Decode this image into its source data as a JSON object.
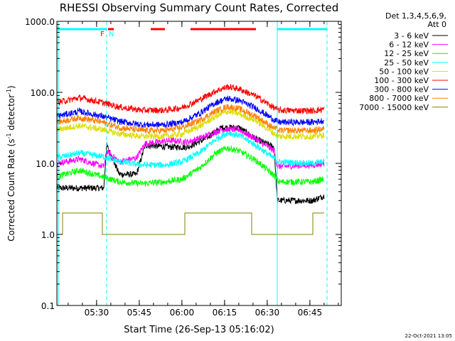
{
  "chart_data": {
    "type": "line",
    "title": "RHESSI Observing Summary Count Rates, Corrected",
    "xlabel": "Start Time (26-Sep-13 05:16:02)",
    "ylabel_main": "Corrected Count Rate (s",
    "ylabel_sup": "-1",
    "ylabel_tail": " detector",
    "ylabel_end": ")",
    "x_unit": "minutes since 05:16:02",
    "xlim": [
      0,
      100
    ],
    "ylim": [
      0.1,
      1000
    ],
    "yscale": "log",
    "xticks": [
      {
        "t": 13.97,
        "label": "05:30"
      },
      {
        "t": 28.97,
        "label": "05:45"
      },
      {
        "t": 43.97,
        "label": "06:00"
      },
      {
        "t": 58.97,
        "label": "06:15"
      },
      {
        "t": 73.97,
        "label": "06:30"
      },
      {
        "t": 88.97,
        "label": "06:45"
      }
    ],
    "yticks": [
      {
        "v": 0.1,
        "label": "0.1"
      },
      {
        "v": 1,
        "label": "1.0"
      },
      {
        "v": 10,
        "label": "10.0"
      },
      {
        "v": 100,
        "label": "100.0"
      },
      {
        "v": 1000,
        "label": "1000.0"
      }
    ],
    "legend_header": [
      "Det 1,3,4,5,6,9,",
      "Att 0"
    ],
    "legend_placement": "right",
    "series": [
      {
        "name": "3 - 6 keV",
        "color": "#000000",
        "points": [
          [
            0,
            4.5
          ],
          [
            16.5,
            4.5
          ],
          [
            17.5,
            18
          ],
          [
            22,
            7
          ],
          [
            28,
            7
          ],
          [
            31,
            18
          ],
          [
            40,
            17
          ],
          [
            46,
            17
          ],
          [
            52,
            22
          ],
          [
            58,
            32
          ],
          [
            64,
            32
          ],
          [
            70,
            22
          ],
          [
            76.4,
            17
          ],
          [
            77.5,
            3
          ],
          [
            90,
            3
          ],
          [
            94,
            3.5
          ]
        ]
      },
      {
        "name": "6 - 12 keV",
        "color": "#ff00ff",
        "points": [
          [
            0,
            10
          ],
          [
            8,
            11.5
          ],
          [
            16.5,
            9
          ],
          [
            17.5,
            15
          ],
          [
            22,
            10.5
          ],
          [
            28,
            12
          ],
          [
            31,
            19
          ],
          [
            40,
            21
          ],
          [
            46,
            20
          ],
          [
            52,
            24
          ],
          [
            58,
            30
          ],
          [
            64,
            30
          ],
          [
            70,
            22
          ],
          [
            76.4,
            15
          ],
          [
            77.5,
            9
          ],
          [
            90,
            9.5
          ],
          [
            94,
            10
          ]
        ]
      },
      {
        "name": "12 - 25 keV",
        "color": "#00ff00",
        "points": [
          [
            0,
            6.5
          ],
          [
            8,
            8
          ],
          [
            16,
            6.5
          ],
          [
            22,
            5.5
          ],
          [
            30,
            5.2
          ],
          [
            38,
            5.5
          ],
          [
            44,
            6
          ],
          [
            50,
            8.5
          ],
          [
            56,
            14
          ],
          [
            60,
            16.5
          ],
          [
            64,
            15
          ],
          [
            70,
            11
          ],
          [
            76,
            7
          ],
          [
            78,
            5.5
          ],
          [
            90,
            5.5
          ],
          [
            94,
            6
          ]
        ]
      },
      {
        "name": "25 - 50 keV",
        "color": "#00ffff",
        "points": [
          [
            0,
            12
          ],
          [
            8,
            14
          ],
          [
            16,
            12.5
          ],
          [
            22,
            10.5
          ],
          [
            30,
            9.5
          ],
          [
            38,
            9.5
          ],
          [
            44,
            10.5
          ],
          [
            50,
            14
          ],
          [
            56,
            22
          ],
          [
            60,
            27
          ],
          [
            64,
            25
          ],
          [
            70,
            18
          ],
          [
            76,
            12
          ],
          [
            78,
            10.5
          ],
          [
            90,
            10
          ],
          [
            94,
            10.5
          ]
        ]
      },
      {
        "name": "50 - 100 keV",
        "color": "#dddd00",
        "points": [
          [
            0,
            30
          ],
          [
            8,
            34
          ],
          [
            16,
            30
          ],
          [
            22,
            26
          ],
          [
            30,
            24
          ],
          [
            38,
            24
          ],
          [
            44,
            26
          ],
          [
            50,
            33
          ],
          [
            56,
            46
          ],
          [
            60,
            54
          ],
          [
            64,
            50
          ],
          [
            70,
            40
          ],
          [
            76,
            27
          ],
          [
            78,
            24
          ],
          [
            90,
            24
          ],
          [
            94,
            25
          ]
        ]
      },
      {
        "name": "100 - 300 keV",
        "color": "#ff0000",
        "points": [
          [
            0,
            72
          ],
          [
            8,
            84
          ],
          [
            16,
            72
          ],
          [
            22,
            62
          ],
          [
            30,
            56
          ],
          [
            38,
            56
          ],
          [
            44,
            61
          ],
          [
            50,
            78
          ],
          [
            56,
            105
          ],
          [
            60,
            120
          ],
          [
            64,
            112
          ],
          [
            70,
            88
          ],
          [
            76,
            62
          ],
          [
            78,
            56
          ],
          [
            90,
            55
          ],
          [
            94,
            58
          ]
        ]
      },
      {
        "name": "300 - 800 keV",
        "color": "#0000ff",
        "points": [
          [
            0,
            46
          ],
          [
            8,
            54
          ],
          [
            16,
            46
          ],
          [
            22,
            39
          ],
          [
            30,
            35
          ],
          [
            38,
            35
          ],
          [
            44,
            38
          ],
          [
            50,
            50
          ],
          [
            56,
            72
          ],
          [
            60,
            82
          ],
          [
            64,
            77
          ],
          [
            70,
            60
          ],
          [
            76,
            42
          ],
          [
            78,
            38
          ],
          [
            90,
            38
          ],
          [
            94,
            40
          ]
        ]
      },
      {
        "name": "800 - 7000 keV",
        "color": "#ff8000",
        "points": [
          [
            0,
            38
          ],
          [
            8,
            44
          ],
          [
            16,
            38
          ],
          [
            22,
            32
          ],
          [
            30,
            29
          ],
          [
            38,
            29
          ],
          [
            44,
            32
          ],
          [
            50,
            40
          ],
          [
            56,
            55
          ],
          [
            60,
            63
          ],
          [
            64,
            59
          ],
          [
            70,
            46
          ],
          [
            76,
            32
          ],
          [
            78,
            29
          ],
          [
            90,
            29
          ],
          [
            94,
            31
          ]
        ]
      },
      {
        "name": "7000 - 15000 keV",
        "color": "#808000",
        "points": [
          [
            2,
            1
          ],
          [
            2,
            2
          ],
          [
            16,
            2
          ],
          [
            16,
            1
          ],
          [
            29,
            1
          ],
          [
            44,
            1
          ],
          [
            45,
            1
          ],
          [
            45,
            2
          ],
          [
            68.5,
            2
          ],
          [
            68.5,
            1
          ],
          [
            69,
            1
          ],
          [
            90,
            1
          ],
          [
            90,
            2
          ],
          [
            94,
            2
          ]
        ]
      }
    ],
    "flag_bars": [
      {
        "color": "#00ffff",
        "ranges": [
          [
            0,
            17.5
          ],
          [
            77.5,
            95
          ]
        ]
      },
      {
        "color": "#ff0000",
        "ranges": [
          [
            18,
            20
          ],
          [
            33,
            38
          ],
          [
            47,
            70
          ]
        ]
      }
    ],
    "flag_labels": [
      {
        "text": "F",
        "color": "#ff0000",
        "t": 16
      },
      {
        "text": "N",
        "color": "#00ffff",
        "t": 19.2
      }
    ],
    "vlines": [
      {
        "t": 0.5,
        "color": "#00ffff",
        "style": "solid"
      },
      {
        "t": 17.5,
        "color": "#00ffff",
        "style": "dashed"
      },
      {
        "t": 77.5,
        "color": "#00ffff",
        "style": "solid"
      },
      {
        "t": 95,
        "color": "#00ffff",
        "style": "dashed"
      }
    ],
    "footer_date": "22-Oct-2021 13:05"
  }
}
